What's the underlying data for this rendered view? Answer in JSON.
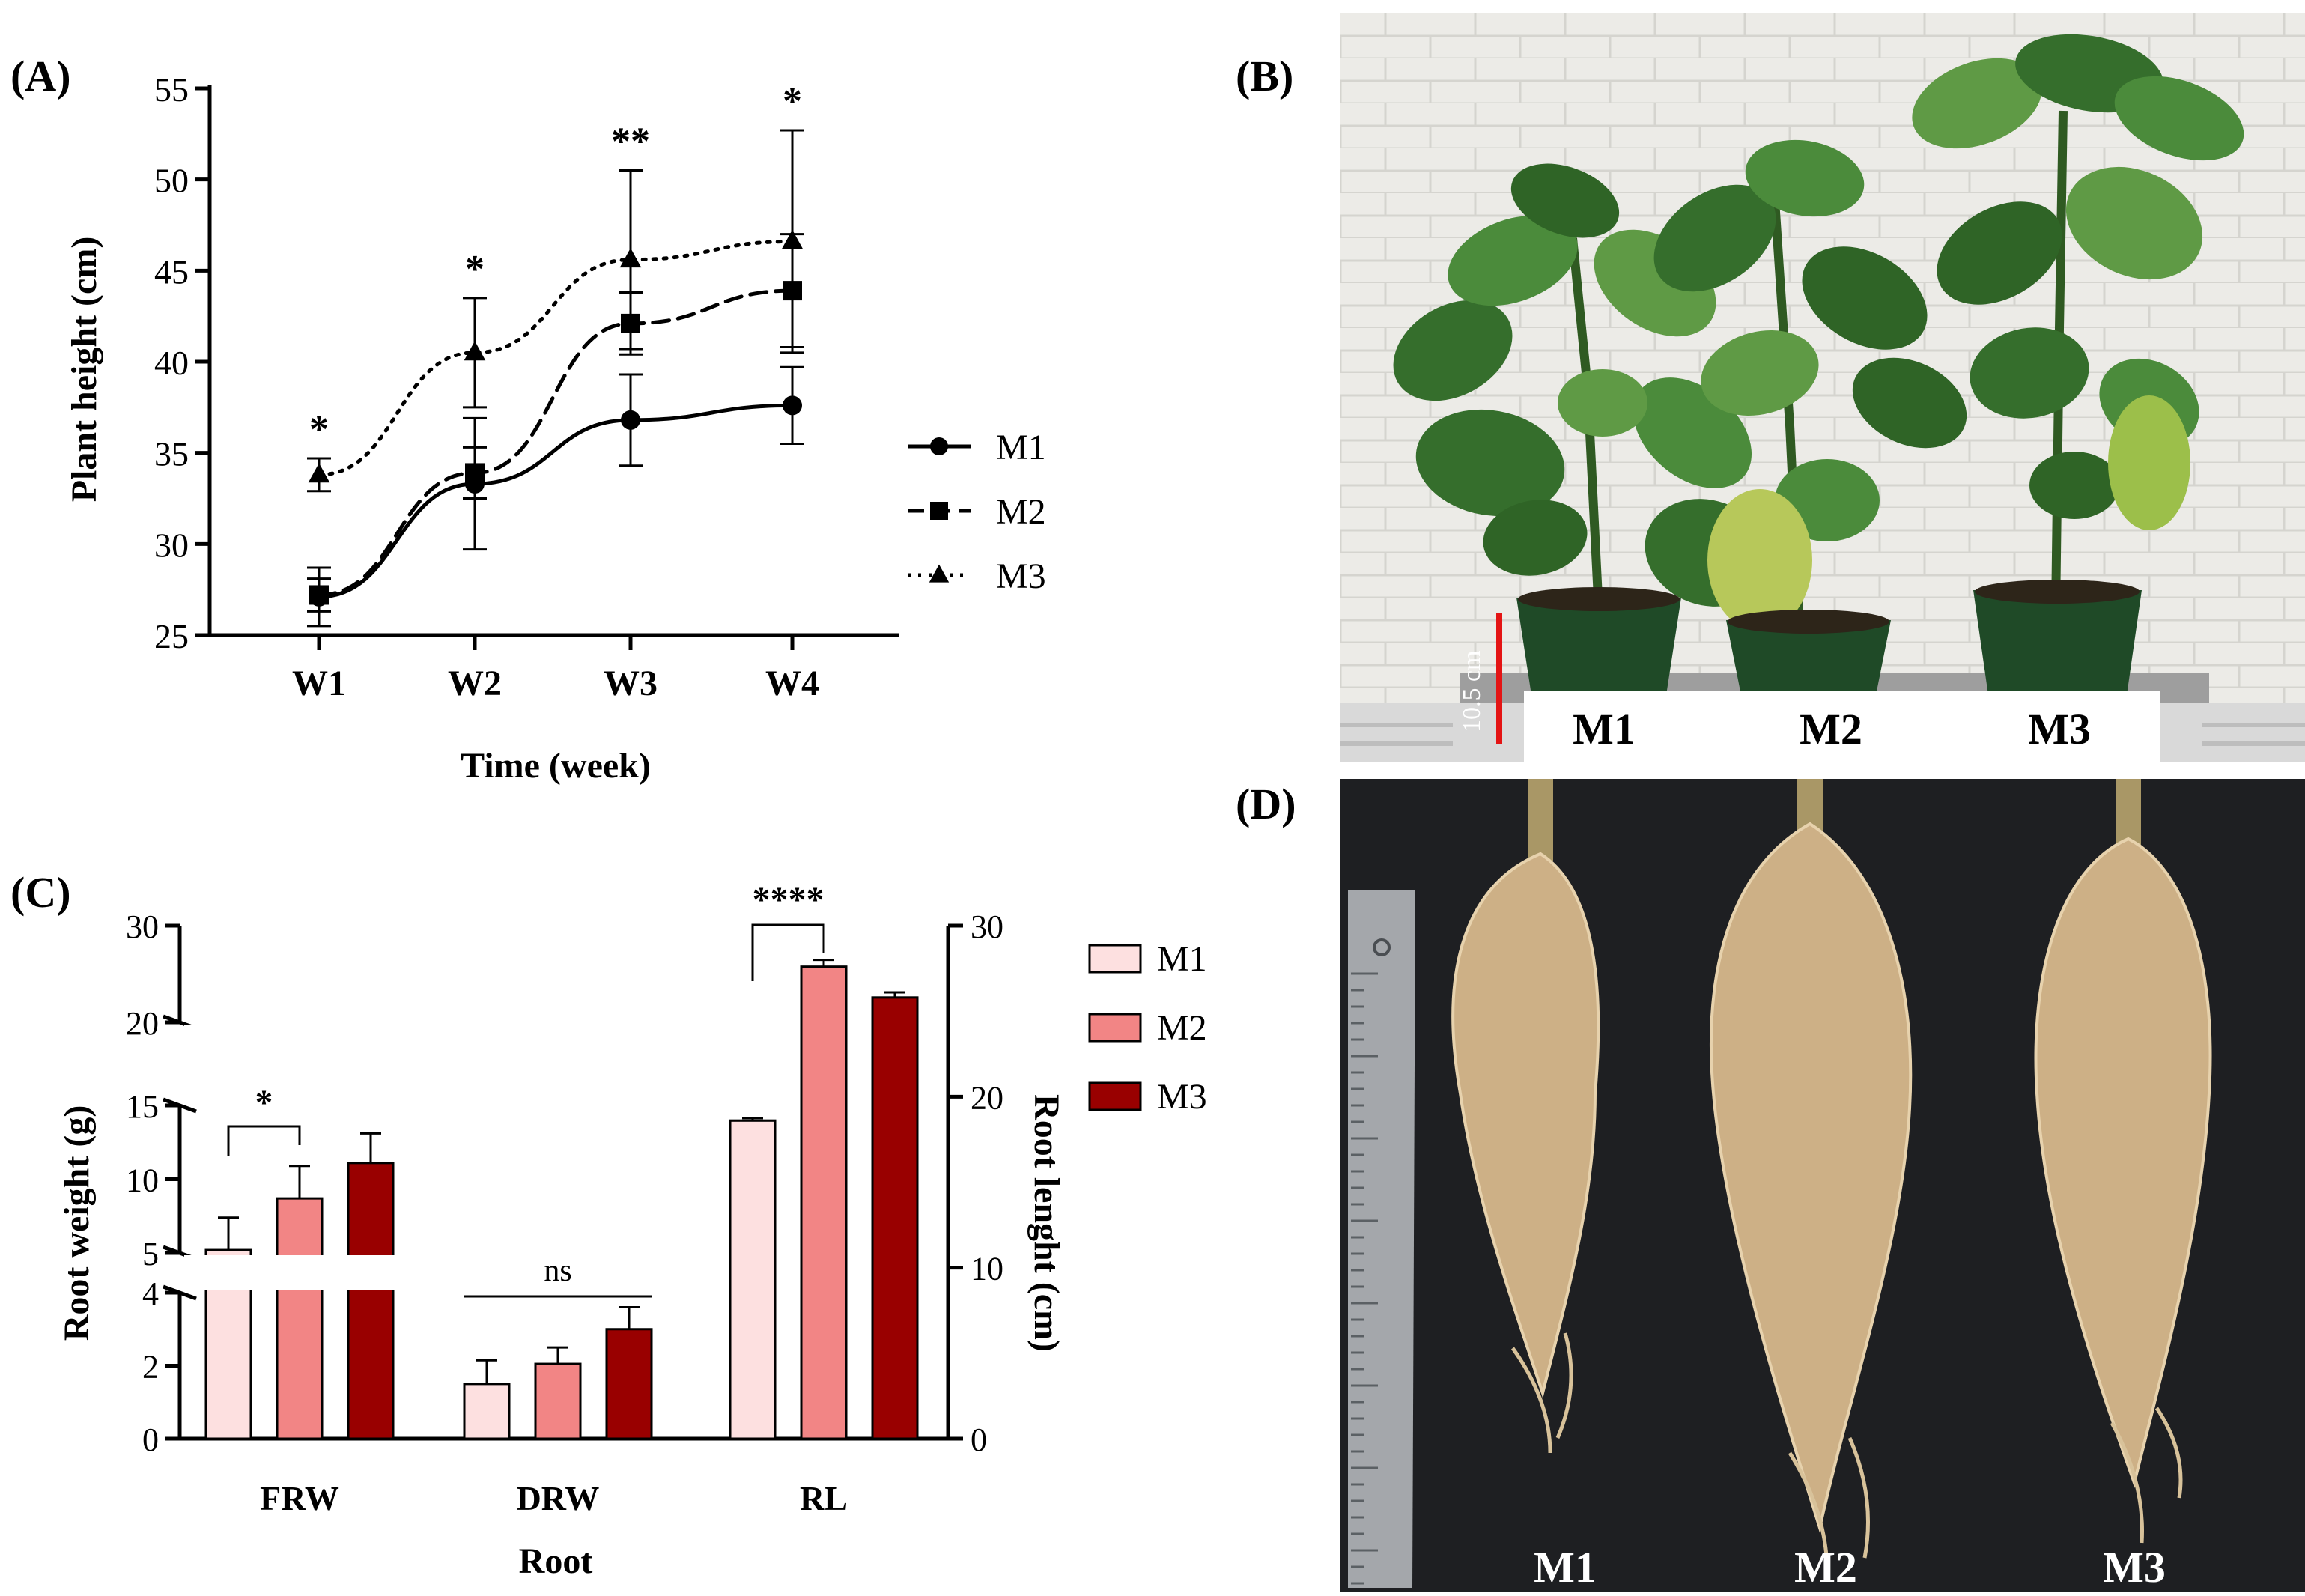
{
  "panel_labels": {
    "a": "(A)",
    "b": "(B)",
    "c": "(C)",
    "d": "(D)"
  },
  "colors": {
    "m1_bar": "#fde0e0",
    "m2_bar": "#f28585",
    "m3_bar": "#990000",
    "scale_bar": "#e41414",
    "leaf": "#3f7d34",
    "root": "#cdb086",
    "tray": "#1c1c1c"
  },
  "chart_data": [
    {
      "id": "A",
      "type": "line",
      "xlabel": "Time (week)",
      "ylabel": "Plant height (cm)",
      "categories": [
        "W1",
        "W2",
        "W3",
        "W4"
      ],
      "ylim": [
        25,
        55
      ],
      "yticks": [
        25,
        30,
        35,
        40,
        45,
        50,
        55
      ],
      "legend_position": "right",
      "series": [
        {
          "name": "M1",
          "marker": "circle",
          "line": "solid",
          "values": [
            27.1,
            33.3,
            36.8,
            37.6
          ],
          "err": [
            1.6,
            3.6,
            2.5,
            2.1
          ]
        },
        {
          "name": "M2",
          "marker": "square",
          "line": "dashed",
          "values": [
            27.2,
            33.9,
            42.1,
            43.9
          ],
          "err": [
            0.9,
            1.4,
            1.7,
            3.1
          ]
        },
        {
          "name": "M3",
          "marker": "triangle",
          "line": "dotted",
          "values": [
            33.8,
            40.5,
            45.6,
            46.6
          ],
          "err": [
            0.9,
            3.0,
            4.9,
            6.1
          ]
        }
      ],
      "significance": [
        "*",
        "*",
        "**",
        "*"
      ]
    },
    {
      "id": "C",
      "type": "bar",
      "xlabel": "Root",
      "ylabel_left": "Root weight (g)",
      "ylabel_right": "Root lenght (cm)",
      "categories": [
        "FRW",
        "DRW",
        "RL"
      ],
      "left_axis_breaks": [
        [
          0,
          4
        ],
        [
          5,
          15
        ],
        [
          20,
          30
        ]
      ],
      "left_ticks": [
        0,
        2,
        4,
        5,
        10,
        15,
        20,
        30
      ],
      "right_ylim": [
        0,
        30
      ],
      "right_ticks": [
        0,
        10,
        20,
        30
      ],
      "legend_position": "top-right",
      "series": [
        {
          "name": "M1",
          "values": [
            5.2,
            1.5,
            18.6
          ],
          "err": [
            2.2,
            0.65,
            0.15
          ]
        },
        {
          "name": "M2",
          "values": [
            8.7,
            2.05,
            27.6
          ],
          "err": [
            2.2,
            0.45,
            0.4
          ]
        },
        {
          "name": "M3",
          "values": [
            11.1,
            3.0,
            25.8
          ],
          "err": [
            2.0,
            0.6,
            0.3
          ]
        }
      ],
      "annotations": [
        {
          "category": "FRW",
          "text": "*"
        },
        {
          "category": "DRW",
          "text": "ns"
        },
        {
          "category": "RL",
          "text": "****"
        }
      ]
    }
  ],
  "photo_b": {
    "scale": "10.5 cm",
    "labels": [
      "M1",
      "M2",
      "M3"
    ]
  },
  "photo_d": {
    "labels": [
      "M1",
      "M2",
      "M3"
    ]
  }
}
